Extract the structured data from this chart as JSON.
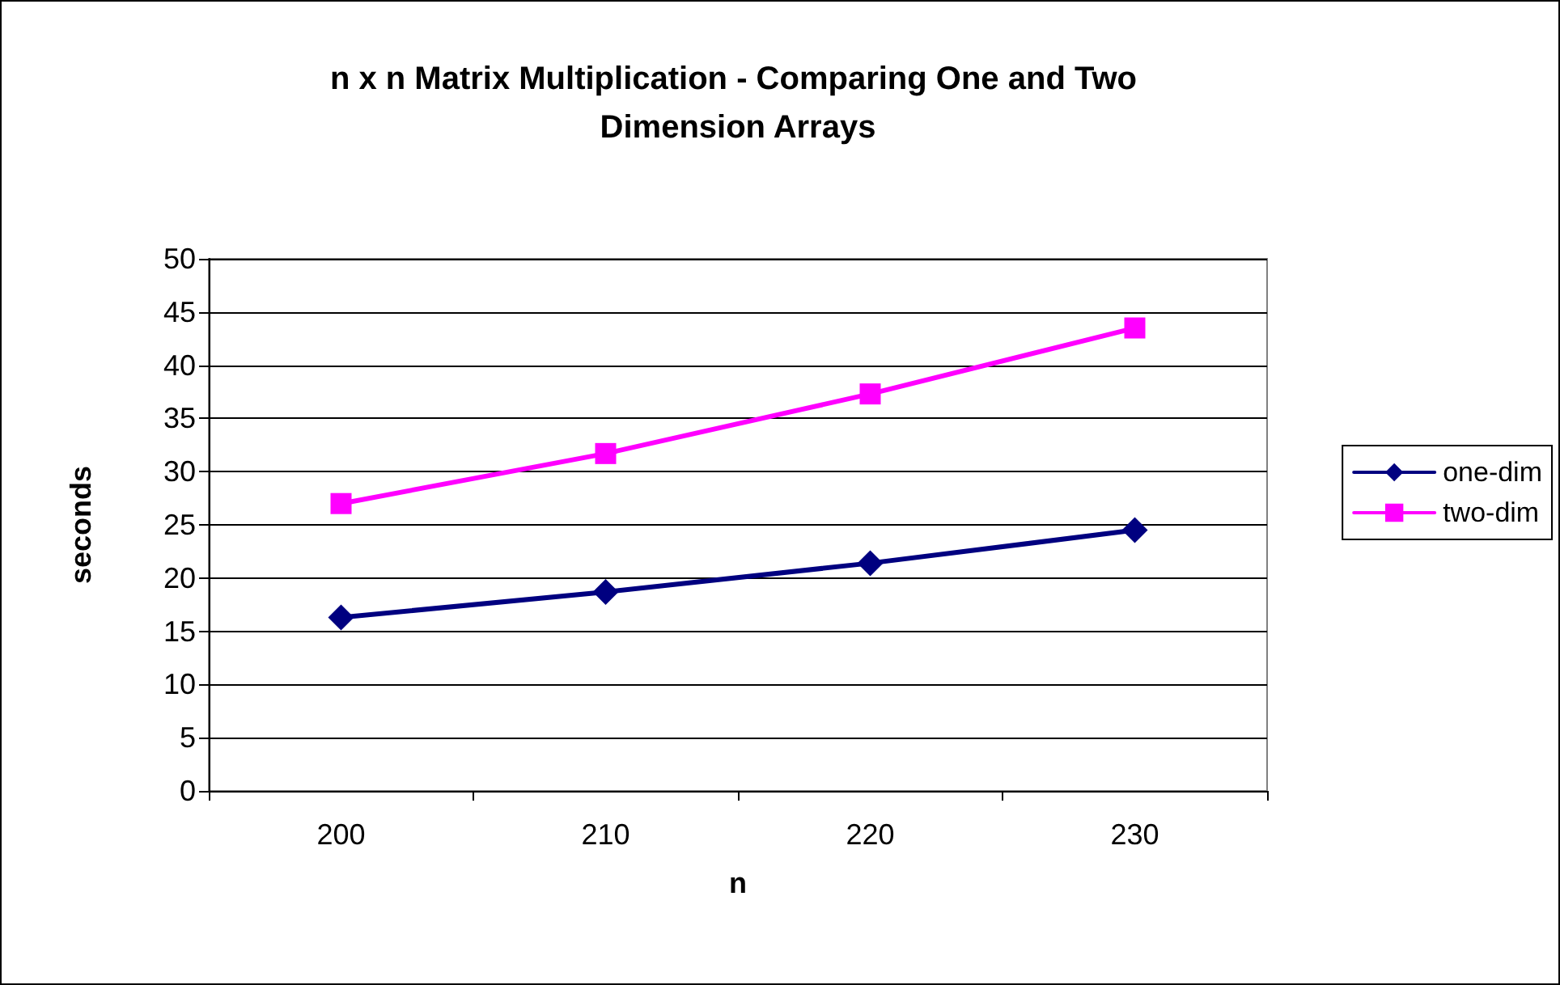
{
  "chart_data": {
    "type": "line",
    "title": "n x n Matrix Multiplication - Comparing One and Two Dimension Arrays",
    "xlabel": "n",
    "ylabel": "seconds",
    "categories": [
      "200",
      "210",
      "220",
      "230"
    ],
    "series": [
      {
        "name": "one-dim",
        "color": "#000080",
        "marker": "diamond",
        "values": [
          16.3,
          18.7,
          21.4,
          24.5
        ]
      },
      {
        "name": "two-dim",
        "color": "#ff00ff",
        "marker": "square",
        "values": [
          27,
          31.7,
          37.3,
          43.5
        ]
      }
    ],
    "ylim": [
      0,
      50
    ],
    "yticks": [
      0,
      5,
      10,
      15,
      20,
      25,
      30,
      35,
      40,
      45,
      50
    ],
    "grid": "y",
    "legend": "right",
    "line_style": "solid"
  }
}
